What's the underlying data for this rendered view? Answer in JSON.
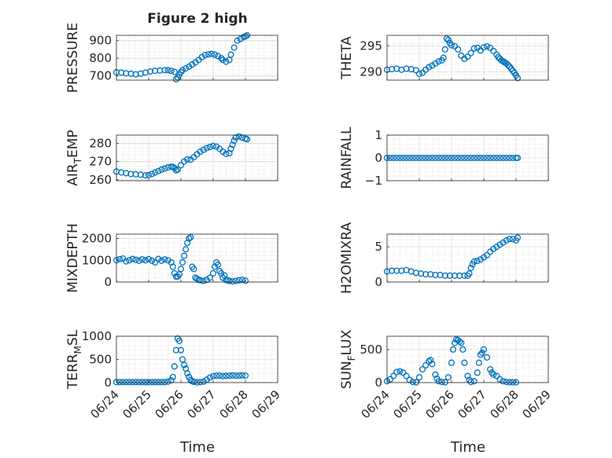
{
  "title": "Figure 2 high",
  "xlabel": "Time",
  "x_ticks": [
    "06/24",
    "06/25",
    "06/26",
    "06/27",
    "06/28",
    "06/29"
  ],
  "marker_color": "#0072BD",
  "grid": true,
  "minor_grid": true,
  "chart_data": [
    {
      "type": "scatter",
      "ylabel": "PRESSURE",
      "ylabel_sub": "",
      "ylabel_tail": "",
      "ylim": [
        675,
        930
      ],
      "yticks": [
        700,
        800,
        900
      ],
      "x_range": [
        "06/24",
        "06/29"
      ],
      "x": [
        0,
        0.15,
        0.3,
        0.45,
        0.6,
        0.75,
        0.9,
        1.05,
        1.2,
        1.35,
        1.5,
        1.6,
        1.7,
        1.8,
        1.85,
        1.9,
        1.95,
        2.0,
        2.05,
        2.15,
        2.25,
        2.35,
        2.45,
        2.55,
        2.65,
        2.75,
        2.85,
        2.95,
        3.05,
        3.15,
        3.25,
        3.3,
        3.4,
        3.5,
        3.55,
        3.65,
        3.75,
        3.85,
        3.95,
        4.0,
        4.05
      ],
      "y": [
        720,
        718,
        714,
        712,
        708,
        712,
        718,
        724,
        728,
        730,
        732,
        731,
        728,
        722,
        680,
        690,
        706,
        720,
        732,
        742,
        752,
        764,
        776,
        790,
        806,
        818,
        822,
        824,
        820,
        812,
        800,
        790,
        780,
        790,
        820,
        860,
        900,
        910,
        920,
        925,
        930
      ]
    },
    {
      "type": "scatter",
      "ylabel": "THETA",
      "ylabel_sub": "",
      "ylabel_tail": "",
      "ylim": [
        288.4,
        297.0
      ],
      "yticks": [
        290,
        295
      ],
      "x_range": [
        "06/24",
        "06/29"
      ],
      "x": [
        0,
        0.15,
        0.3,
        0.45,
        0.6,
        0.75,
        0.9,
        1.0,
        1.1,
        1.2,
        1.3,
        1.4,
        1.5,
        1.6,
        1.7,
        1.75,
        1.8,
        1.85,
        1.9,
        1.95,
        2.0,
        2.1,
        2.2,
        2.3,
        2.4,
        2.5,
        2.6,
        2.7,
        2.8,
        2.9,
        3.0,
        3.1,
        3.2,
        3.3,
        3.4,
        3.45,
        3.5,
        3.55,
        3.6,
        3.65,
        3.7,
        3.75,
        3.8,
        3.85,
        3.9,
        3.95,
        4.0,
        4.05
      ],
      "y": [
        290.4,
        290.5,
        290.6,
        290.4,
        290.6,
        290.5,
        290.3,
        289.6,
        289.8,
        290.4,
        290.9,
        291.2,
        291.6,
        292.0,
        292.2,
        292.7,
        294.3,
        296.4,
        296.1,
        295.5,
        295.1,
        294.9,
        294.3,
        293.1,
        292.5,
        292.9,
        293.6,
        294.5,
        294.6,
        294.1,
        294.7,
        294.9,
        294.6,
        294.0,
        293.3,
        292.8,
        292.5,
        292.2,
        292.0,
        291.8,
        291.6,
        291.3,
        291.0,
        290.6,
        290.2,
        289.8,
        289.3,
        288.8
      ]
    },
    {
      "type": "scatter",
      "ylabel": "AIR",
      "ylabel_sub": "T",
      "ylabel_tail": "EMP",
      "ylim": [
        259.5,
        284.5
      ],
      "yticks": [
        260,
        270,
        280
      ],
      "x_range": [
        "06/24",
        "06/29"
      ],
      "x": [
        0,
        0.15,
        0.3,
        0.45,
        0.6,
        0.75,
        0.9,
        1.0,
        1.1,
        1.2,
        1.3,
        1.4,
        1.5,
        1.6,
        1.7,
        1.75,
        1.8,
        1.85,
        1.9,
        2.0,
        2.1,
        2.2,
        2.3,
        2.4,
        2.5,
        2.6,
        2.7,
        2.8,
        2.9,
        3.0,
        3.1,
        3.2,
        3.3,
        3.4,
        3.5,
        3.55,
        3.6,
        3.65,
        3.7,
        3.8,
        3.9,
        4.0,
        4.05
      ],
      "y": [
        264.5,
        264.0,
        263.6,
        263.2,
        263.0,
        262.8,
        262.4,
        262.6,
        263.2,
        264.0,
        264.8,
        265.6,
        266.2,
        266.8,
        267.2,
        267.0,
        266.5,
        265.2,
        265.6,
        268.0,
        270.0,
        271.2,
        271.0,
        272.4,
        274.0,
        275.4,
        276.4,
        277.4,
        278.0,
        278.6,
        278.2,
        277.0,
        275.4,
        274.2,
        274.6,
        277.0,
        279.2,
        281.4,
        283.2,
        283.8,
        283.2,
        282.6,
        282.2
      ]
    },
    {
      "type": "scatter",
      "ylabel": "RAINFALL",
      "ylabel_sub": "",
      "ylabel_tail": "",
      "ylim": [
        -1,
        1
      ],
      "yticks": [
        -1,
        0,
        1
      ],
      "x_range": [
        "06/24",
        "06/29"
      ],
      "x": [
        0,
        0.1,
        0.2,
        0.3,
        0.4,
        0.5,
        0.6,
        0.7,
        0.8,
        0.9,
        1.0,
        1.1,
        1.2,
        1.3,
        1.4,
        1.5,
        1.6,
        1.7,
        1.8,
        1.9,
        2.0,
        2.1,
        2.2,
        2.3,
        2.4,
        2.5,
        2.6,
        2.7,
        2.8,
        2.9,
        3.0,
        3.1,
        3.2,
        3.3,
        3.4,
        3.5,
        3.6,
        3.7,
        3.8,
        3.9,
        4.0,
        4.05
      ],
      "y": [
        0,
        0,
        0,
        0,
        0,
        0,
        0,
        0,
        0,
        0,
        0,
        0,
        0,
        0,
        0,
        0,
        0,
        0,
        0,
        0,
        0,
        0,
        0,
        0,
        0,
        0,
        0,
        0,
        0,
        0,
        0,
        0,
        0,
        0,
        0,
        0,
        0,
        0,
        0,
        0,
        0,
        0
      ]
    },
    {
      "type": "scatter",
      "ylabel": "MIXDEPTH",
      "ylabel_sub": "",
      "ylabel_tail": "",
      "ylim": [
        0,
        2200
      ],
      "yticks": [
        0,
        1000,
        2000
      ],
      "x_range": [
        "06/24",
        "06/29"
      ],
      "x": [
        0,
        0.1,
        0.2,
        0.3,
        0.4,
        0.5,
        0.6,
        0.7,
        0.8,
        0.9,
        1.0,
        1.1,
        1.2,
        1.3,
        1.4,
        1.5,
        1.6,
        1.7,
        1.75,
        1.8,
        1.85,
        1.9,
        1.95,
        2.0,
        2.05,
        2.1,
        2.15,
        2.2,
        2.25,
        2.3,
        2.35,
        2.4,
        2.45,
        2.5,
        2.55,
        2.6,
        2.7,
        2.8,
        2.9,
        3.0,
        3.05,
        3.1,
        3.15,
        3.2,
        3.25,
        3.3,
        3.35,
        3.4,
        3.45,
        3.5,
        3.6,
        3.7,
        3.8,
        3.9,
        4.0
      ],
      "y": [
        1000,
        1050,
        1080,
        950,
        1000,
        1060,
        1020,
        980,
        1040,
        1000,
        1050,
        980,
        900,
        1060,
        980,
        1040,
        1000,
        900,
        700,
        400,
        250,
        250,
        350,
        600,
        900,
        1200,
        1500,
        1800,
        2000,
        2050,
        700,
        600,
        200,
        150,
        100,
        80,
        50,
        100,
        200,
        400,
        700,
        900,
        800,
        500,
        400,
        200,
        300,
        100,
        80,
        50,
        30,
        50,
        80,
        100,
        60
      ]
    },
    {
      "type": "scatter",
      "ylabel": "H2OMIXRA",
      "ylabel_sub": "",
      "ylabel_tail": "",
      "ylim": [
        0,
        6.8
      ],
      "yticks": [
        0,
        5
      ],
      "x_range": [
        "06/24",
        "06/29"
      ],
      "x": [
        0,
        0.15,
        0.3,
        0.45,
        0.6,
        0.75,
        0.9,
        1.05,
        1.2,
        1.35,
        1.5,
        1.65,
        1.8,
        1.95,
        2.1,
        2.25,
        2.4,
        2.5,
        2.55,
        2.6,
        2.65,
        2.7,
        2.8,
        2.9,
        3.0,
        3.1,
        3.2,
        3.3,
        3.4,
        3.5,
        3.6,
        3.7,
        3.8,
        3.9,
        4.0,
        4.05
      ],
      "y": [
        1.5,
        1.6,
        1.6,
        1.6,
        1.7,
        1.5,
        1.3,
        1.2,
        1.1,
        1.1,
        1.0,
        1.0,
        0.9,
        0.9,
        0.9,
        0.9,
        0.9,
        0.9,
        1.2,
        2.0,
        2.5,
        2.9,
        3.0,
        3.2,
        3.5,
        3.8,
        4.3,
        4.7,
        5.0,
        5.3,
        5.6,
        5.9,
        6.1,
        6.1,
        5.9,
        6.3
      ]
    },
    {
      "type": "scatter",
      "ylabel": "TERR",
      "ylabel_sub": "M",
      "ylabel_tail": "SL",
      "ylim": [
        0,
        1000
      ],
      "yticks": [
        0,
        500,
        1000
      ],
      "x_range": [
        "06/24",
        "06/29"
      ],
      "x": [
        0,
        0.1,
        0.2,
        0.3,
        0.4,
        0.5,
        0.6,
        0.7,
        0.8,
        0.9,
        1.0,
        1.1,
        1.2,
        1.3,
        1.4,
        1.5,
        1.6,
        1.7,
        1.75,
        1.8,
        1.85,
        1.9,
        1.95,
        2.0,
        2.05,
        2.1,
        2.15,
        2.2,
        2.25,
        2.3,
        2.35,
        2.4,
        2.5,
        2.6,
        2.7,
        2.8,
        2.9,
        3.0,
        3.1,
        3.2,
        3.3,
        3.4,
        3.5,
        3.6,
        3.7,
        3.8,
        3.9,
        4.0
      ],
      "y": [
        10,
        10,
        10,
        10,
        10,
        10,
        10,
        10,
        10,
        10,
        10,
        10,
        10,
        10,
        10,
        10,
        20,
        50,
        120,
        350,
        700,
        950,
        900,
        700,
        500,
        380,
        300,
        200,
        120,
        60,
        30,
        15,
        5,
        10,
        20,
        60,
        110,
        140,
        150,
        150,
        140,
        145,
        150,
        155,
        150,
        150,
        155,
        150
      ]
    },
    {
      "type": "scatter",
      "ylabel": "SUN",
      "ylabel_sub": "F",
      "ylabel_tail": "LUX",
      "ylim": [
        0,
        700
      ],
      "yticks": [
        0,
        500
      ],
      "x_range": [
        "06/24",
        "06/29"
      ],
      "x": [
        0,
        0.1,
        0.2,
        0.3,
        0.4,
        0.5,
        0.6,
        0.7,
        0.8,
        0.9,
        1.0,
        1.1,
        1.2,
        1.3,
        1.35,
        1.4,
        1.5,
        1.55,
        1.6,
        1.7,
        1.8,
        1.9,
        2.0,
        2.05,
        2.1,
        2.15,
        2.2,
        2.25,
        2.3,
        2.35,
        2.4,
        2.5,
        2.55,
        2.6,
        2.7,
        2.8,
        2.85,
        2.9,
        2.95,
        3.0,
        3.1,
        3.2,
        3.25,
        3.3,
        3.4,
        3.5,
        3.6,
        3.7,
        3.8,
        3.9,
        4.0
      ],
      "y": [
        20,
        50,
        100,
        160,
        170,
        150,
        100,
        40,
        10,
        5,
        80,
        200,
        260,
        320,
        340,
        280,
        120,
        60,
        20,
        10,
        5,
        80,
        300,
        500,
        600,
        650,
        640,
        620,
        600,
        500,
        300,
        100,
        40,
        10,
        20,
        150,
        300,
        420,
        450,
        500,
        380,
        200,
        150,
        120,
        100,
        50,
        20,
        10,
        5,
        5,
        5
      ]
    }
  ]
}
